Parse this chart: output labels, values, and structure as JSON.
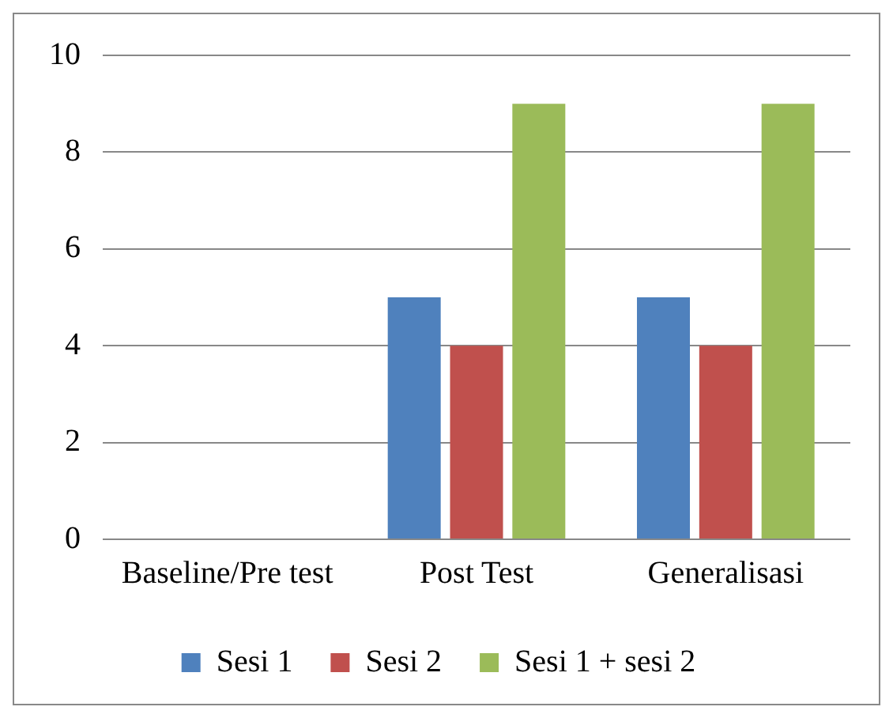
{
  "chart_data": {
    "type": "bar",
    "categories": [
      "Baseline/Pre test",
      "Post Test",
      "Generalisasi"
    ],
    "series": [
      {
        "name": "Sesi 1",
        "color": "#4f81bd",
        "values": [
          0,
          5,
          5
        ]
      },
      {
        "name": "Sesi 2",
        "color": "#c0504d",
        "values": [
          0,
          4,
          4
        ]
      },
      {
        "name": "Sesi 1 + sesi 2",
        "color": "#9bbb59",
        "values": [
          0,
          9,
          9
        ]
      }
    ],
    "ylim": [
      0,
      10
    ],
    "yticks": [
      0,
      2,
      4,
      6,
      8,
      10
    ],
    "grid": "y",
    "legend": "bottom"
  }
}
